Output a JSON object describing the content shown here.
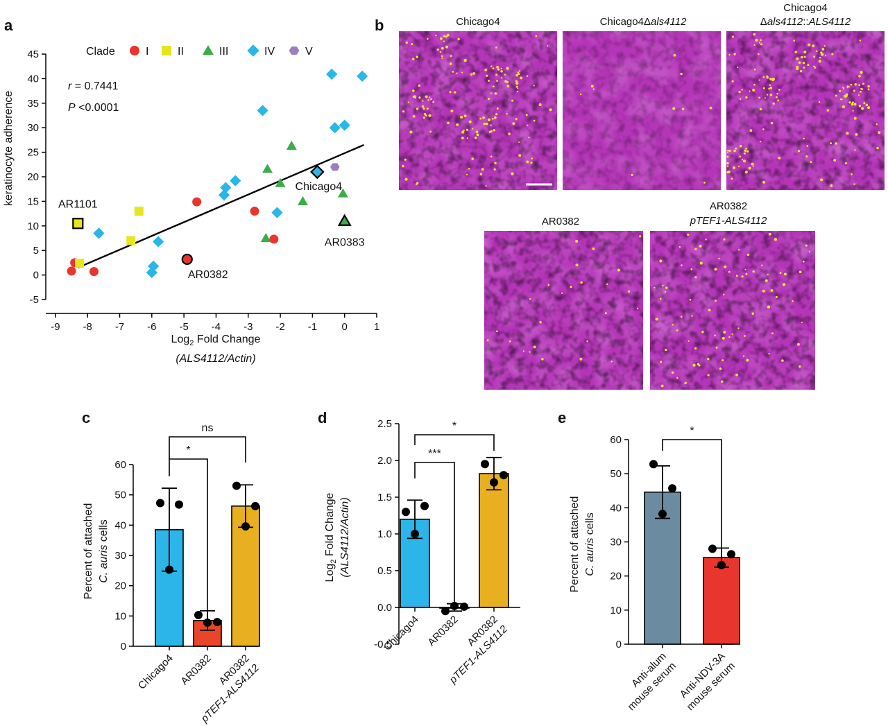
{
  "colors": {
    "I": "#e8352e",
    "II": "#e7e61c",
    "III": "#3aad4b",
    "IV": "#29b7e8",
    "V": "#9a7fbf",
    "bar_chicago4": "#2bb5e8",
    "bar_ar0382": "#e8452a",
    "bar_ptef1": "#e8b021",
    "bar_anti_alum": "#6b8ba0",
    "bar_anti_ndv": "#e8352e",
    "micro_bg": "#b535b8"
  },
  "panels": {
    "a": "a",
    "b": "b",
    "c": "c",
    "d": "d",
    "e": "e"
  },
  "micrographs": {
    "chicago4": "Chicago4",
    "deletion_prefix": "Chicago4Δ",
    "deletion_italic": "als4112",
    "complement_line1": "Chicago4",
    "complement_delta": "Δ",
    "complement_italic1": "als4112",
    "complement_sep": "::",
    "complement_italic2": "ALS4112",
    "ar0382": "AR0382",
    "ar0382_ptef1_line1": "AR0382",
    "ar0382_ptef1_line2": "pTEF1-ALS4112"
  },
  "chart_data": [
    {
      "panel": "a",
      "type": "scatter",
      "xlabel_pre": "Log",
      "xlabel_sub": "2",
      "xlabel_post": " Fold Change",
      "xlabel_line2": "(ALS4112/Actin)",
      "ylabel": "keratinocyte adherence",
      "xlim": [
        -9.3,
        1
      ],
      "ylim": [
        -5,
        45
      ],
      "xticks": [
        -9,
        -8,
        -7,
        -6,
        -5,
        -4,
        -3,
        -2,
        -1,
        0,
        1
      ],
      "yticks": [
        -5,
        0,
        5,
        10,
        15,
        20,
        25,
        30,
        35,
        40,
        45
      ],
      "legend_title": "Clade",
      "legend": [
        {
          "clade": "I",
          "label": "I"
        },
        {
          "clade": "II",
          "label": "II"
        },
        {
          "clade": "III",
          "label": "III"
        },
        {
          "clade": "IV",
          "label": "IV"
        },
        {
          "clade": "V",
          "label": "V"
        }
      ],
      "stat_r_label": "r",
      "stat_r_value": " = 0.7441",
      "stat_p_label": "P",
      "stat_p_value": " <0.0001",
      "regression": {
        "x": [
          -8.3,
          0.6
        ],
        "y": [
          1.5,
          26.5
        ]
      },
      "points": [
        {
          "clade": "I",
          "x": -8.5,
          "y": 0.8
        },
        {
          "clade": "I",
          "x": -8.4,
          "y": 2.5
        },
        {
          "clade": "I",
          "x": -7.8,
          "y": 0.7
        },
        {
          "clade": "I",
          "x": -4.6,
          "y": 14.9
        },
        {
          "clade": "I",
          "x": -2.8,
          "y": 13.0
        },
        {
          "clade": "I",
          "x": -2.2,
          "y": 7.3
        },
        {
          "clade": "I",
          "x": -4.9,
          "y": 3.2,
          "highlight": true,
          "label": "AR0382"
        },
        {
          "clade": "II",
          "x": -8.3,
          "y": 10.5,
          "highlight": true,
          "label": "AR1101"
        },
        {
          "clade": "II",
          "x": -8.25,
          "y": 2.4
        },
        {
          "clade": "II",
          "x": -6.65,
          "y": 7.0
        },
        {
          "clade": "II",
          "x": -6.4,
          "y": 13.0
        },
        {
          "clade": "III",
          "x": -2.4,
          "y": 21.6
        },
        {
          "clade": "III",
          "x": -2.0,
          "y": 18.7
        },
        {
          "clade": "III",
          "x": -1.65,
          "y": 26.3
        },
        {
          "clade": "III",
          "x": -1.3,
          "y": 15.0
        },
        {
          "clade": "III",
          "x": -2.45,
          "y": 7.5
        },
        {
          "clade": "III",
          "x": -0.05,
          "y": 16.6
        },
        {
          "clade": "III",
          "x": 0.0,
          "y": 11.0,
          "highlight": true,
          "label": "AR0383"
        },
        {
          "clade": "IV",
          "x": -7.65,
          "y": 8.5
        },
        {
          "clade": "IV",
          "x": -5.8,
          "y": 6.8
        },
        {
          "clade": "IV",
          "x": -6.0,
          "y": 0.5
        },
        {
          "clade": "IV",
          "x": -5.95,
          "y": 1.8
        },
        {
          "clade": "IV",
          "x": -3.75,
          "y": 16.3
        },
        {
          "clade": "IV",
          "x": -3.7,
          "y": 17.8
        },
        {
          "clade": "IV",
          "x": -3.4,
          "y": 19.2
        },
        {
          "clade": "IV",
          "x": -2.55,
          "y": 33.5
        },
        {
          "clade": "IV",
          "x": -2.1,
          "y": 12.7
        },
        {
          "clade": "IV",
          "x": -0.4,
          "y": 40.9
        },
        {
          "clade": "IV",
          "x": -0.3,
          "y": 30.0
        },
        {
          "clade": "IV",
          "x": 0.0,
          "y": 30.5
        },
        {
          "clade": "IV",
          "x": 0.55,
          "y": 40.5
        },
        {
          "clade": "IV",
          "x": -0.85,
          "y": 21.0,
          "highlight": true,
          "label": "Chicago4"
        },
        {
          "clade": "V",
          "x": -0.3,
          "y": 22.0
        }
      ]
    },
    {
      "panel": "c",
      "type": "bar",
      "categories": [
        "Chicago4",
        "AR0382",
        "AR0382"
      ],
      "categories_line2": [
        "",
        "",
        "pTEF1-ALS4112"
      ],
      "values": [
        38.5,
        8.5,
        46.3
      ],
      "sd": [
        13.7,
        3.2,
        7.0
      ],
      "points": [
        [
          47.3,
          46.8,
          25.3
        ],
        [
          10.3,
          8.0,
          7.8
        ],
        [
          53.0,
          46.3,
          39.6
        ]
      ],
      "bar_colors": [
        "bar_chicago4",
        "bar_ar0382",
        "bar_ptef1"
      ],
      "ylabel_line1": "Percent of attached",
      "ylabel_line2_italic": "C. auris",
      "ylabel_line2_rest": " cells",
      "ylim": [
        0,
        60
      ],
      "yticks": [
        0,
        10,
        20,
        30,
        40,
        50,
        60
      ],
      "significance": [
        {
          "from": 0,
          "to": 1,
          "label": "*"
        },
        {
          "from": 0,
          "to": 2,
          "label": "ns"
        }
      ]
    },
    {
      "panel": "d",
      "type": "bar",
      "categories": [
        "Chicago4",
        "AR0382",
        "AR0382"
      ],
      "categories_line2": [
        "",
        "",
        "pTEF1-ALS4112"
      ],
      "values": [
        1.2,
        0.0,
        1.82
      ],
      "sd": [
        0.26,
        0.05,
        0.22
      ],
      "points": [
        [
          1.3,
          1.38,
          1.0
        ],
        [
          -0.05,
          0.01,
          0.02
        ],
        [
          1.95,
          1.8,
          1.7
        ]
      ],
      "bar_colors": [
        "bar_chicago4",
        "bar_ar0382",
        "bar_ptef1"
      ],
      "ylabel_pre": "Log",
      "ylabel_sub": "2",
      "ylabel_post": " Fold Change",
      "ylabel_line2": "(ALS4112/Actin)",
      "ylim": [
        -0.5,
        2.5
      ],
      "yticks": [
        -0.5,
        0.0,
        0.5,
        1.0,
        1.5,
        2.0,
        2.5
      ],
      "ytick_labels": [
        "-0.5",
        "0.0",
        "0.5",
        "1.0",
        "1.5",
        "2.0",
        "2.5"
      ],
      "significance": [
        {
          "from": 0,
          "to": 1,
          "label": "***"
        },
        {
          "from": 0,
          "to": 2,
          "label": "*"
        }
      ]
    },
    {
      "panel": "e",
      "type": "bar",
      "categories": [
        "Anti-alum",
        "Anti-NDV-3A"
      ],
      "categories_line2": [
        "mouse serum",
        "mouse serum"
      ],
      "values": [
        44.6,
        25.4
      ],
      "sd": [
        7.7,
        2.8
      ],
      "points": [
        [
          52.8,
          45.7,
          38.2
        ],
        [
          28.0,
          26.4,
          23.2
        ]
      ],
      "bar_colors": [
        "bar_anti_alum",
        "bar_anti_ndv"
      ],
      "ylabel_line1": "Percent of attached",
      "ylabel_line2_italic": "C. auris",
      "ylabel_line2_rest": " cells",
      "ylim": [
        0,
        60
      ],
      "yticks": [
        0,
        10,
        20,
        30,
        40,
        50,
        60
      ],
      "significance": [
        {
          "from": 0,
          "to": 1,
          "label": "*"
        }
      ]
    }
  ]
}
